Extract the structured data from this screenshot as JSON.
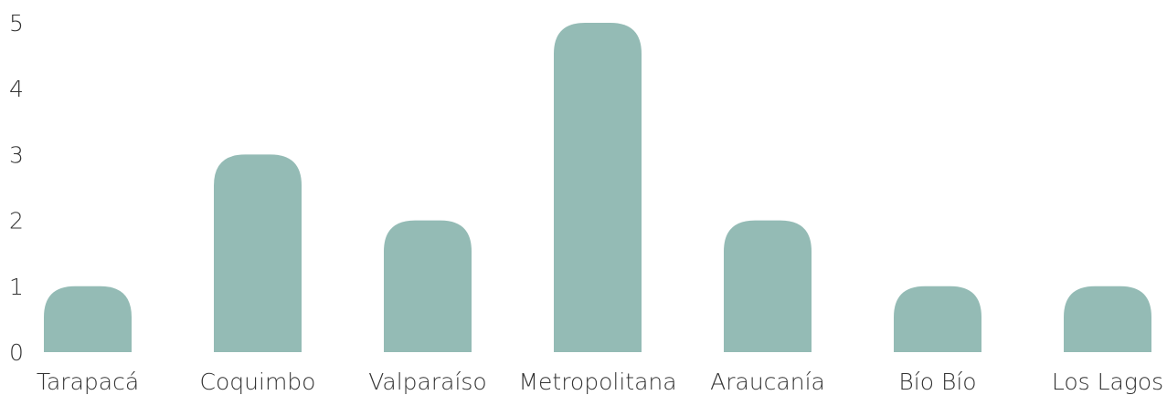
{
  "chart_data": {
    "type": "bar",
    "categories": [
      "Tarapacá",
      "Coquimbo",
      "Valparaíso",
      "Metropolitana",
      "Araucanía",
      "Bío Bío",
      "Los Lagos"
    ],
    "values": [
      1,
      3,
      2,
      5,
      2,
      1,
      1
    ],
    "yticks": [
      "0",
      "1",
      "2",
      "3",
      "4",
      "5"
    ],
    "ylim": [
      0,
      5
    ],
    "title": "",
    "xlabel": "",
    "ylabel": "",
    "grid": false,
    "legend": "none",
    "bar_color": "#94bbb5",
    "text_color": "#333333",
    "background": "#ffffff"
  }
}
